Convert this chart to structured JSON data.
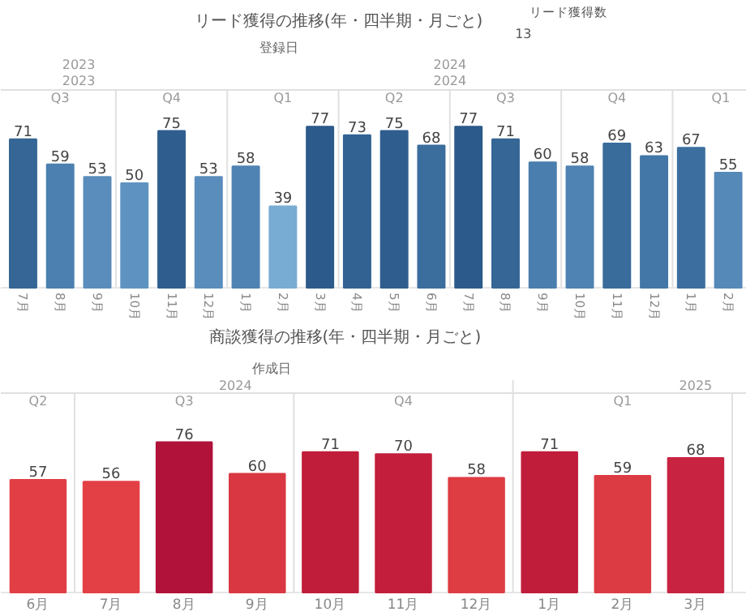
{
  "chart_data": [
    {
      "type": "bar",
      "title": "リード獲得の推移(年・四半期・月ごと)",
      "xlabel": "登録日",
      "clabel": "リード獲得数",
      "data_labels": true,
      "categories": [
        "7月",
        "8月",
        "9月",
        "10月",
        "11月",
        "12月",
        "1月",
        "2月",
        "3月",
        "4月",
        "5月",
        "6月",
        "7月",
        "8月",
        "9月",
        "10月",
        "11月",
        "12月",
        "1月",
        "2月"
      ],
      "values": [
        71,
        59,
        53,
        50,
        75,
        53,
        58,
        39,
        77,
        73,
        75,
        68,
        77,
        71,
        60,
        58,
        69,
        63,
        67,
        55
      ],
      "colors": [
        "#356695",
        "#4c80b0",
        "#5a8dbc",
        "#5e93c1",
        "#2f5e8e",
        "#5a8dbc",
        "#4f83b3",
        "#79acd3",
        "#2c5a8a",
        "#326292",
        "#2f5e8e",
        "#3b6d9d",
        "#2c5a8a",
        "#356695",
        "#4a7eae",
        "#4f83b3",
        "#396b9b",
        "#4377a8",
        "#3c6f9f",
        "#5589b8"
      ],
      "annotations": [
        "13",
        "2023",
        "2023",
        "2024",
        "2024",
        "Q3",
        "Q4",
        "Q1",
        "Q2",
        "Q3",
        "Q4",
        "Q1"
      ]
    },
    {
      "type": "bar",
      "title": "商談獲得の推移(年・四半期・月ごと)",
      "xlabel": "作成日",
      "data_labels": true,
      "categories": [
        "6月",
        "7月",
        "8月",
        "9月",
        "10月",
        "11月",
        "12月",
        "1月",
        "2月",
        "3月"
      ],
      "values": [
        57,
        56,
        76,
        60,
        71,
        70,
        58,
        71,
        59,
        68
      ],
      "colors": [
        "#e13f45",
        "#e34046",
        "#b0123a",
        "#d93843",
        "#c01d3b",
        "#c31f3d",
        "#df3d44",
        "#c01d3b",
        "#dc3b44",
        "#c82341"
      ],
      "annotations": [
        "2024",
        "2025",
        "Q2",
        "Q3",
        "Q4",
        "Q1"
      ]
    }
  ]
}
